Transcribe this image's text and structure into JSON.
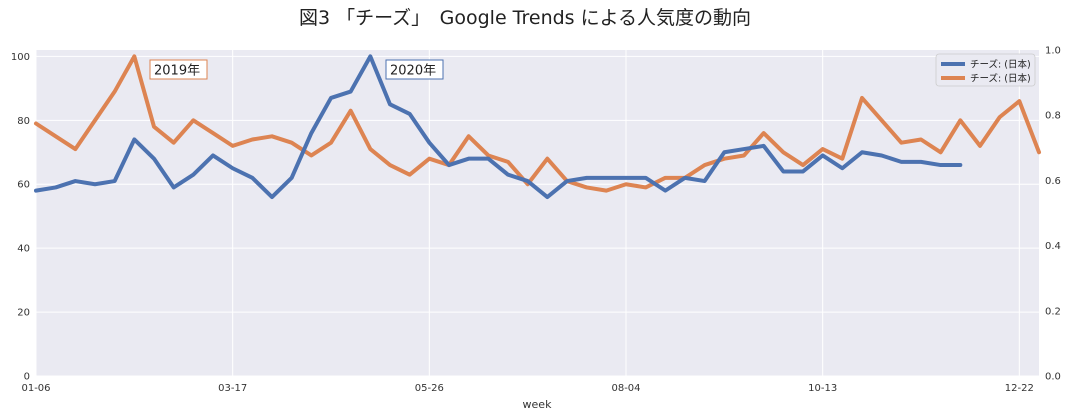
{
  "chart_data": {
    "type": "line",
    "title": "図3 「チーズ」　Google Trends による人気度の動向",
    "xlabel": "week",
    "x_tick_labels": [
      "01-06",
      "03-17",
      "05-26",
      "08-04",
      "10-13",
      "12-22"
    ],
    "y_left": {
      "ylim": [
        0,
        102
      ],
      "ticks": [
        0,
        20,
        40,
        60,
        80,
        100
      ]
    },
    "y_right": {
      "ylim": [
        0.0,
        1.0
      ],
      "ticks": [
        "0.0",
        "0.2",
        "0.4",
        "0.6",
        "0.8",
        "1.0"
      ]
    },
    "grid": true,
    "legend_position": "top-right",
    "series": [
      {
        "name": "チーズ: (日本)",
        "color": "#4c72b0",
        "annotation": "2020年",
        "values": [
          58,
          59,
          61,
          60,
          61,
          74,
          68,
          59,
          63,
          69,
          65,
          62,
          56,
          62,
          76,
          87,
          89,
          100,
          85,
          82,
          73,
          66,
          68,
          68,
          63,
          61,
          56,
          61,
          62,
          62,
          62,
          62,
          58,
          62,
          61,
          70,
          71,
          72,
          64,
          64,
          69,
          65,
          70,
          69,
          67,
          67,
          66,
          66
        ]
      },
      {
        "name": "チーズ: (日本)",
        "color": "#dd8452",
        "annotation": "2019年",
        "values": [
          79,
          75,
          71,
          80,
          89,
          100,
          78,
          73,
          80,
          76,
          72,
          74,
          75,
          73,
          69,
          73,
          83,
          71,
          66,
          63,
          68,
          66,
          75,
          69,
          67,
          60,
          68,
          61,
          59,
          58,
          60,
          59,
          62,
          62,
          66,
          68,
          69,
          76,
          70,
          66,
          71,
          68,
          87,
          80,
          73,
          74,
          70,
          80,
          72,
          81,
          86,
          70
        ]
      }
    ]
  }
}
